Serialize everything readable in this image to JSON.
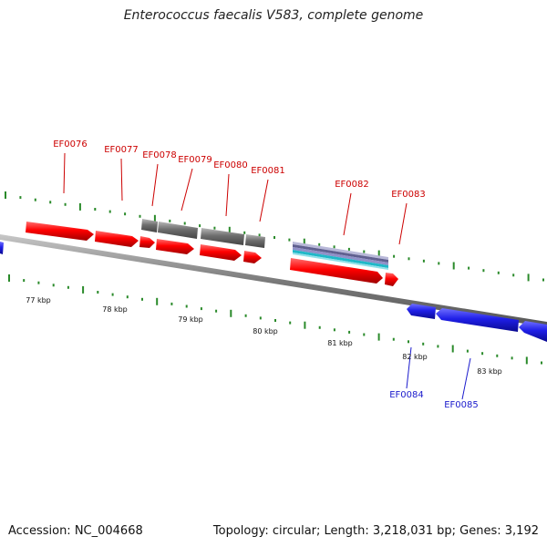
{
  "title": "Enterococcus faecalis V583, complete genome",
  "footer": {
    "accession": "Accession: NC_004668",
    "summary": "Topology: circular; Length: 3,218,031 bp; Genes: 3,192"
  },
  "colors": {
    "forward_gene": "#ff0000",
    "reverse_gene": "#1f1fe8",
    "other_feature": "#6e6e6e",
    "rna_band_1": "#8080c0",
    "rna_band_2": "#1fb8c8",
    "tick": "#2a8a2a",
    "forward_label": "#cc0000",
    "reverse_label": "#1a1acc",
    "backbone": "#808080"
  },
  "scale": {
    "unit": "kbp",
    "labels": [
      "77 kbp",
      "78 kbp",
      "79 kbp",
      "80 kbp",
      "81 kbp",
      "82 kbp",
      "83 kbp"
    ]
  },
  "gene_labels": [
    {
      "id": "EF0076",
      "strand": "+"
    },
    {
      "id": "EF0077",
      "strand": "+"
    },
    {
      "id": "EF0078",
      "strand": "+"
    },
    {
      "id": "EF0079",
      "strand": "+"
    },
    {
      "id": "EF0080",
      "strand": "+"
    },
    {
      "id": "EF0081",
      "strand": "+"
    },
    {
      "id": "EF0082",
      "strand": "+"
    },
    {
      "id": "EF0083",
      "strand": "+"
    },
    {
      "id": "EF0084",
      "strand": "-"
    },
    {
      "id": "EF0085",
      "strand": "-"
    }
  ]
}
